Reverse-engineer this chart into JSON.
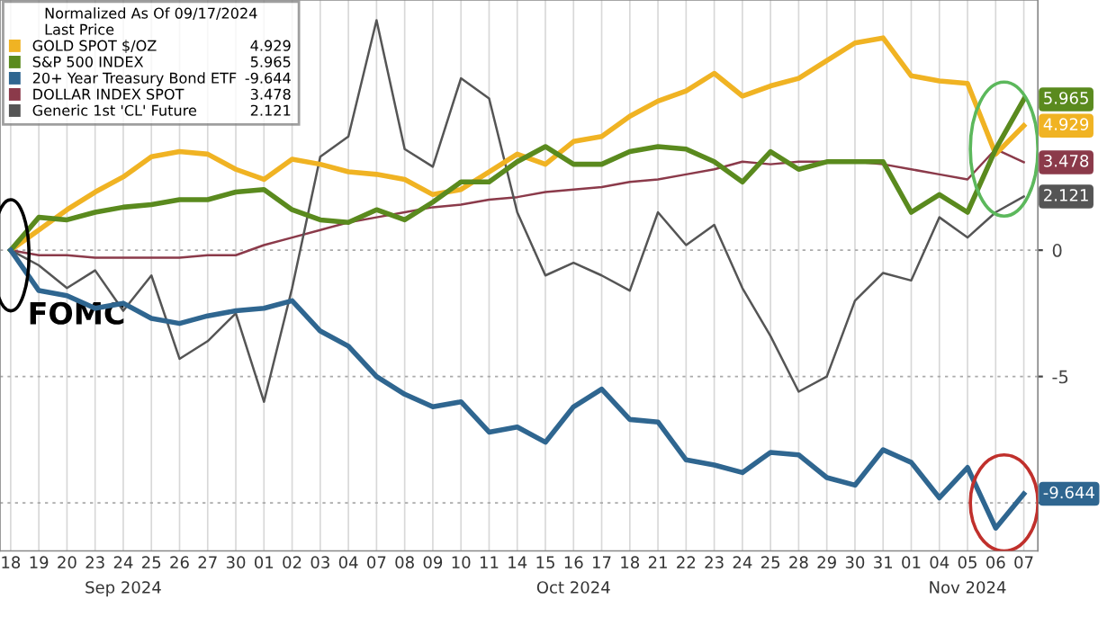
{
  "chart_data": {
    "type": "line",
    "legend_title": "Normalized As Of 09/17/2024\nLast Price",
    "categories": [
      "18",
      "19",
      "20",
      "23",
      "24",
      "25",
      "26",
      "27",
      "30",
      "01",
      "02",
      "03",
      "04",
      "07",
      "08",
      "09",
      "10",
      "11",
      "14",
      "15",
      "16",
      "17",
      "18",
      "21",
      "22",
      "23",
      "24",
      "25",
      "28",
      "29",
      "30",
      "31",
      "01",
      "04",
      "05",
      "06",
      "07"
    ],
    "series": [
      {
        "name": "GOLD SPOT $/OZ",
        "color": "#f0b323",
        "values": [
          0,
          0.8,
          1.6,
          2.3,
          2.9,
          3.7,
          3.9,
          3.8,
          3.2,
          2.8,
          3.6,
          3.4,
          3.1,
          3.0,
          2.8,
          2.2,
          2.4,
          3.1,
          3.8,
          3.4,
          4.3,
          4.5,
          5.3,
          5.9,
          6.3,
          7.0,
          6.1,
          6.5,
          6.8,
          7.5,
          8.2,
          8.4,
          6.9,
          6.7,
          6.6,
          3.8,
          4.929
        ],
        "value_labels": [
          null,
          null,
          null,
          null,
          null,
          null,
          null,
          null,
          null,
          null,
          null,
          null,
          null,
          null,
          null,
          null,
          null,
          null,
          null,
          null,
          null,
          null,
          null,
          null,
          null,
          null,
          null,
          null,
          null,
          null,
          null,
          null,
          null,
          null,
          null,
          null,
          "4.929"
        ]
      },
      {
        "name": "S&P 500 INDEX",
        "color": "#5a8a1e",
        "values": [
          0,
          1.3,
          1.2,
          1.5,
          1.7,
          1.8,
          2.0,
          2.0,
          2.3,
          2.4,
          1.6,
          1.2,
          1.1,
          1.6,
          1.2,
          1.9,
          2.7,
          2.7,
          3.5,
          4.1,
          3.4,
          3.4,
          3.9,
          4.1,
          4.0,
          3.5,
          2.7,
          3.9,
          3.2,
          3.5,
          3.5,
          3.5,
          1.5,
          2.2,
          1.5,
          4.0,
          5.965
        ],
        "value_labels": [
          null,
          null,
          null,
          null,
          null,
          null,
          null,
          null,
          null,
          null,
          null,
          null,
          null,
          null,
          null,
          null,
          null,
          null,
          null,
          null,
          null,
          null,
          null,
          null,
          null,
          null,
          null,
          null,
          null,
          null,
          null,
          null,
          null,
          null,
          null,
          null,
          "5.965"
        ]
      },
      {
        "name": "20+ Year Treasury Bond ETF",
        "color": "#2f6690",
        "values": [
          0,
          -1.6,
          -1.8,
          -2.3,
          -2.1,
          -2.7,
          -2.9,
          -2.6,
          -2.4,
          -2.3,
          -2.0,
          -3.2,
          -3.8,
          -5.0,
          -5.7,
          -6.2,
          -6.0,
          -7.2,
          -7.0,
          -7.6,
          -6.2,
          -5.5,
          -6.7,
          -6.8,
          -8.3,
          -8.5,
          -8.8,
          -8.0,
          -8.1,
          -9.0,
          -9.3,
          -7.9,
          -8.4,
          -9.8,
          -8.6,
          -11.0,
          -9.644
        ],
        "value_labels": [
          null,
          null,
          null,
          null,
          null,
          null,
          null,
          null,
          null,
          null,
          null,
          null,
          null,
          null,
          null,
          null,
          null,
          null,
          null,
          null,
          null,
          null,
          null,
          null,
          null,
          null,
          null,
          null,
          null,
          null,
          null,
          null,
          null,
          null,
          null,
          null,
          "-9.644"
        ]
      },
      {
        "name": "DOLLAR INDEX SPOT",
        "color": "#8b3a4a",
        "values": [
          0,
          -0.2,
          -0.2,
          -0.3,
          -0.3,
          -0.3,
          -0.3,
          -0.2,
          -0.2,
          0.2,
          0.5,
          0.8,
          1.1,
          1.3,
          1.5,
          1.7,
          1.8,
          2.0,
          2.1,
          2.3,
          2.4,
          2.5,
          2.7,
          2.8,
          3.0,
          3.2,
          3.5,
          3.4,
          3.5,
          3.5,
          3.5,
          3.4,
          3.2,
          3.0,
          2.8,
          4.0,
          3.478
        ],
        "value_labels": [
          null,
          null,
          null,
          null,
          null,
          null,
          null,
          null,
          null,
          null,
          null,
          null,
          null,
          null,
          null,
          null,
          null,
          null,
          null,
          null,
          null,
          null,
          null,
          null,
          null,
          null,
          null,
          null,
          null,
          null,
          null,
          null,
          null,
          null,
          null,
          null,
          "3.478"
        ]
      },
      {
        "name": "Generic 1st 'CL' Future",
        "color": "#555555",
        "values": [
          0,
          -0.6,
          -1.5,
          -0.8,
          -2.4,
          -1.0,
          -4.3,
          -3.6,
          -2.5,
          -6.0,
          -1.5,
          3.7,
          4.5,
          9.1,
          4.0,
          3.3,
          6.8,
          6.0,
          1.5,
          -1.0,
          -0.5,
          -1.0,
          -1.6,
          1.5,
          0.2,
          1.0,
          -1.5,
          -3.4,
          -5.6,
          -5.0,
          -2.0,
          -0.9,
          -1.2,
          1.3,
          0.5,
          1.5,
          2.121
        ],
        "value_labels": [
          null,
          null,
          null,
          null,
          null,
          null,
          null,
          null,
          null,
          null,
          null,
          null,
          null,
          null,
          null,
          null,
          null,
          null,
          null,
          null,
          null,
          null,
          null,
          null,
          null,
          null,
          null,
          null,
          null,
          null,
          null,
          null,
          null,
          null,
          null,
          null,
          "2.121"
        ]
      }
    ],
    "ylim": [
      -11.9,
      9.9
    ],
    "yticks": [
      {
        "value": -10,
        "label": null
      },
      -5,
      0
    ],
    "grid": true,
    "legend": "top left",
    "annotations": [
      "Sep 2024",
      "Oct 2024",
      "Nov 2024",
      {
        "text": "FOMC",
        "x": "18",
        "y": 0
      }
    ]
  }
}
